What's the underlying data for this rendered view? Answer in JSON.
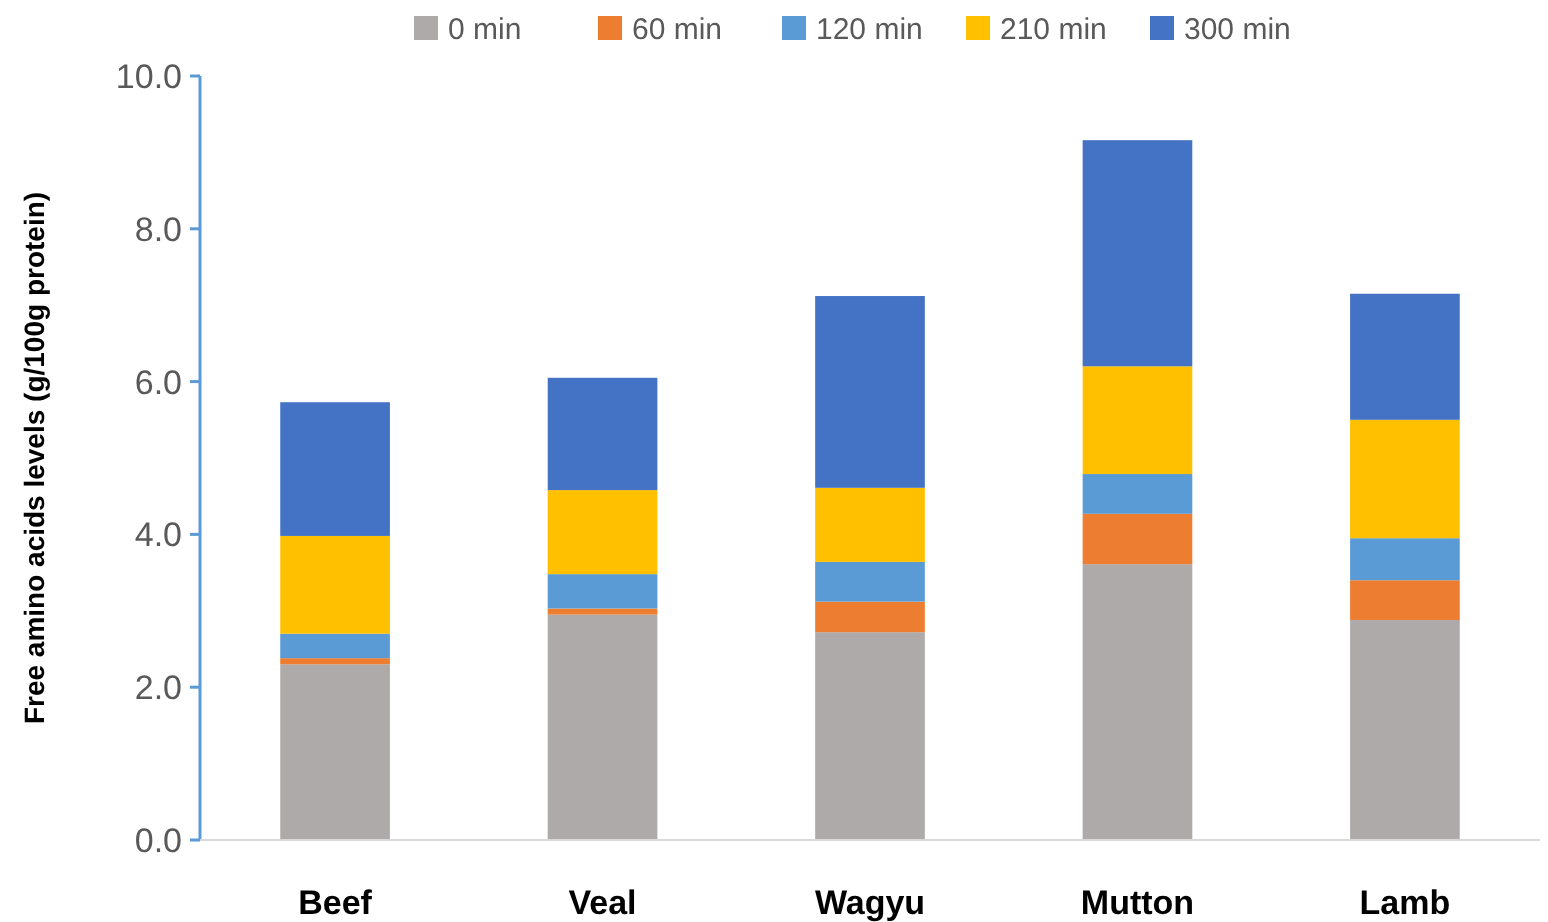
{
  "chart_data": {
    "type": "bar",
    "stacked": true,
    "ylabel": "Free amino acids levels (g/100g protein)",
    "categories": [
      "Beef",
      "Veal",
      "Wagyu",
      "Mutton",
      "Lamb"
    ],
    "series": [
      {
        "name": "0 min",
        "color": "#aeaaaa",
        "values": [
          2.3,
          2.95,
          2.72,
          3.61,
          2.88
        ]
      },
      {
        "name": "60 min",
        "color": "#ed7d31",
        "values": [
          0.08,
          0.08,
          0.4,
          0.66,
          0.52
        ]
      },
      {
        "name": "120 min",
        "color": "#5b9bd5",
        "values": [
          0.32,
          0.45,
          0.52,
          0.52,
          0.55
        ]
      },
      {
        "name": "210 min",
        "color": "#ffc000",
        "values": [
          1.28,
          1.1,
          0.97,
          1.41,
          1.55
        ]
      },
      {
        "name": "300 min",
        "color": "#4472c4",
        "values": [
          1.75,
          1.47,
          2.51,
          2.96,
          1.65
        ]
      }
    ],
    "ylim": [
      0,
      10
    ],
    "yticks": [
      {
        "value": 0,
        "label": "0.0"
      },
      {
        "value": 2,
        "label": "2.0"
      },
      {
        "value": 4,
        "label": "4.0"
      },
      {
        "value": 6,
        "label": "6.0"
      },
      {
        "value": 8,
        "label": "8.0"
      },
      {
        "value": 10,
        "label": "10.0"
      }
    ],
    "grid": false,
    "legend": "top"
  }
}
